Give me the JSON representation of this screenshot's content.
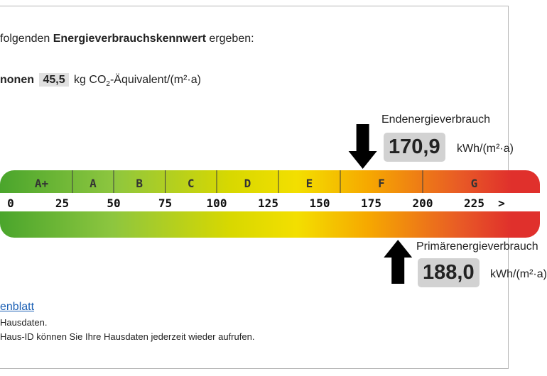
{
  "intro": {
    "prefix": "folgenden",
    "bold": "Energieverbrauchskennwert",
    "suffix": "ergeben:"
  },
  "co2": {
    "label": "nonen",
    "value": "45,5",
    "unit_pre": "kg CO",
    "unit_sub": "2",
    "unit_post": "-Äquivalent/(m²·a)"
  },
  "scale": {
    "ticks": [
      0,
      25,
      50,
      75,
      100,
      125,
      150,
      175,
      200,
      225
    ],
    "overflow": ">",
    "classes": [
      {
        "label": "A+",
        "from": 0,
        "to": 30
      },
      {
        "label": "A",
        "from": 30,
        "to": 50
      },
      {
        "label": "B",
        "from": 50,
        "to": 75
      },
      {
        "label": "C",
        "from": 75,
        "to": 100
      },
      {
        "label": "D",
        "from": 100,
        "to": 130
      },
      {
        "label": "E",
        "from": 130,
        "to": 160
      },
      {
        "label": "F",
        "from": 160,
        "to": 200
      },
      {
        "label": "G",
        "from": 200,
        "to": 250
      }
    ]
  },
  "final_energy": {
    "title": "Endenergieverbrauch",
    "value": 170.9,
    "value_label": "170,9",
    "unit": "kWh/(m²·a)"
  },
  "primary_energy": {
    "title": "Primärenergieverbrauch",
    "value": 188.0,
    "value_label": "188,0",
    "unit": "kWh/(m²·a)"
  },
  "footer": {
    "link": "enblatt",
    "line1": "Hausdaten.",
    "line2": "Haus-ID können Sie Ihre Hausdaten jederzeit wieder aufrufen."
  }
}
